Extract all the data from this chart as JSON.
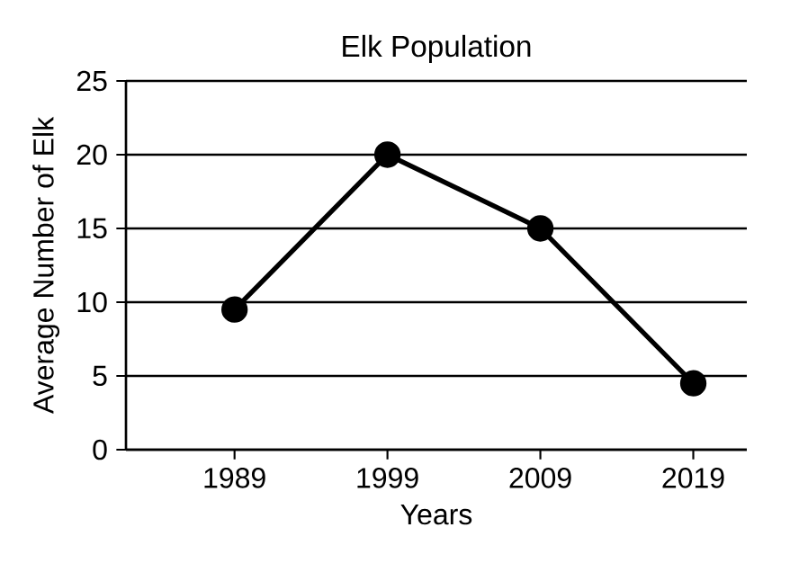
{
  "chart_data": {
    "type": "line",
    "title": "Elk Population",
    "xlabel": "Years",
    "ylabel": "Average Number of Elk",
    "categories": [
      "1989",
      "1999",
      "2009",
      "2019"
    ],
    "values": [
      9.5,
      20,
      15,
      4.5
    ],
    "color": "#000000",
    "ylim": [
      0,
      25
    ],
    "yticks": [
      0,
      5,
      10,
      15,
      20,
      25
    ],
    "grid": "y",
    "marker": "circle",
    "line_style": "solid"
  }
}
